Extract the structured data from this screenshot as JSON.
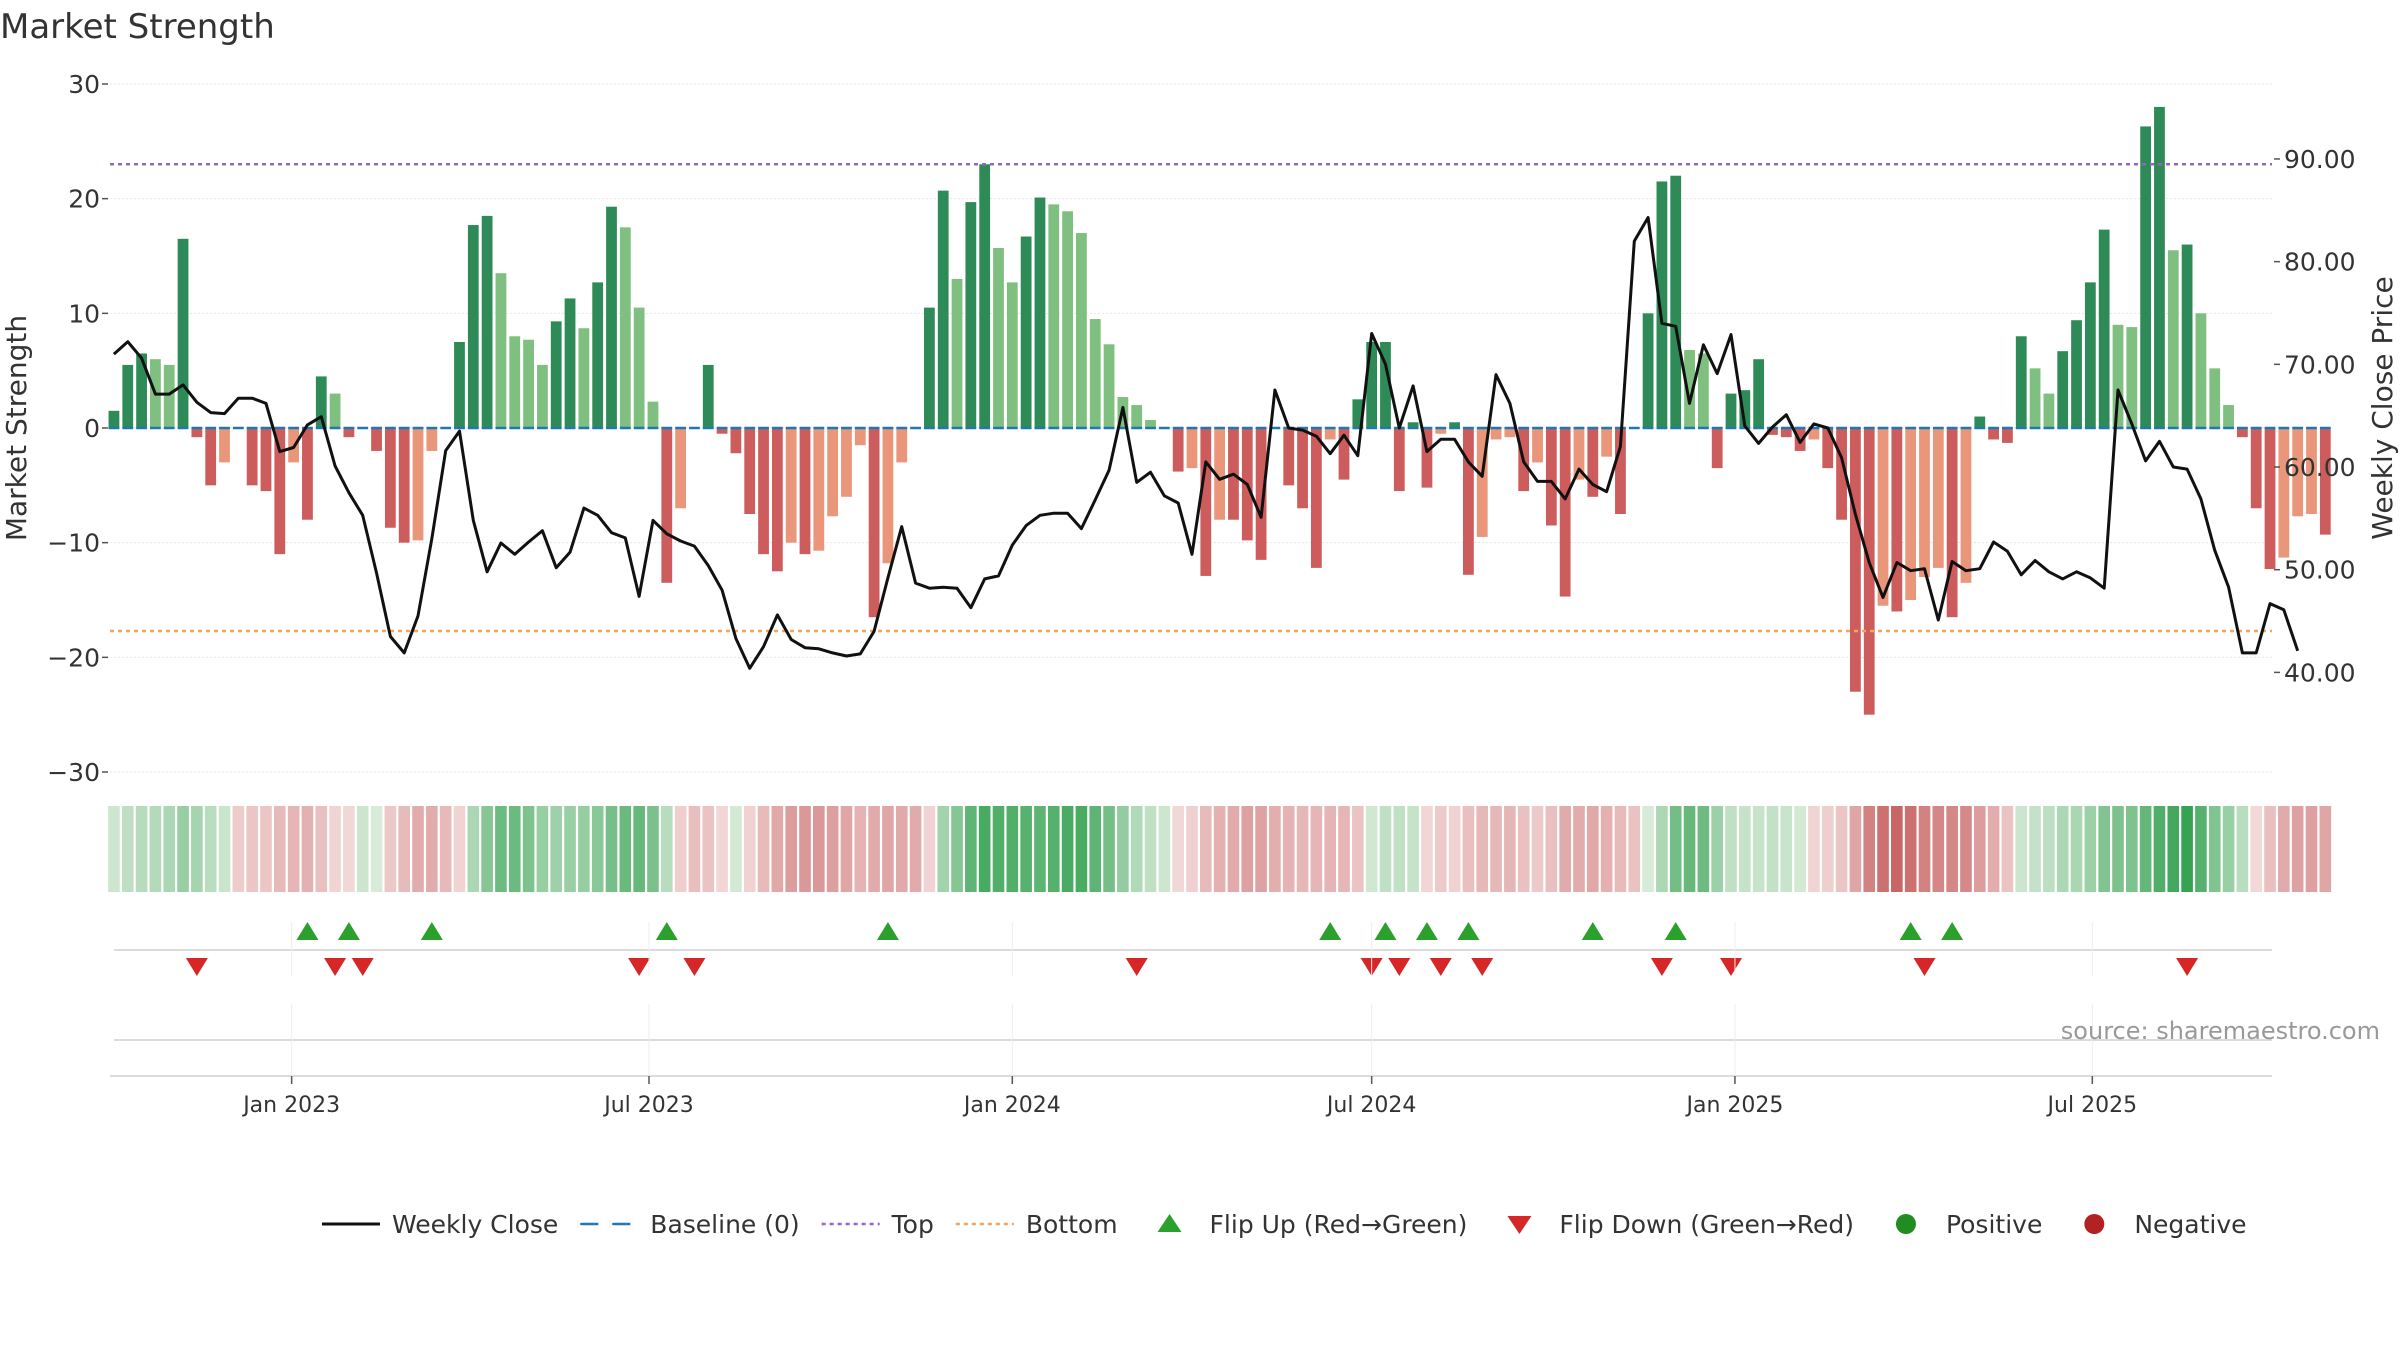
{
  "chart_data": {
    "type": "bar",
    "title": "Market Strength",
    "ylabel": "Market Strength",
    "y2label": "Weekly Close Price",
    "ylim": [
      -30,
      30
    ],
    "y2lim": [
      30.3,
      97.3
    ],
    "yticks": [
      {
        "v": 30,
        "t": "30"
      },
      {
        "v": 20,
        "t": "20"
      },
      {
        "v": 10,
        "t": "10"
      },
      {
        "v": 0,
        "t": "0"
      },
      {
        "v": -10,
        "t": "−10"
      },
      {
        "v": -20,
        "t": "−20"
      },
      {
        "v": -30,
        "t": "−30"
      }
    ],
    "y2ticks": [
      "90.00",
      "80.00",
      "70.00",
      "60.00",
      "50.00",
      "40.00"
    ],
    "top_line": 23,
    "bottom_line": -17.7,
    "x_start": "2022-10-01",
    "x_end": "2025-09-30",
    "week_start": "2022-10-03",
    "xticks": [
      {
        "date": "2023-01-01",
        "label": "Jan 2023"
      },
      {
        "date": "2023-07-01",
        "label": "Jul 2023"
      },
      {
        "date": "2024-01-01",
        "label": "Jan 2024"
      },
      {
        "date": "2024-07-01",
        "label": "Jul 2024"
      },
      {
        "date": "2025-01-01",
        "label": "Jan 2025"
      },
      {
        "date": "2025-07-01",
        "label": "Jul 2025"
      }
    ],
    "strength": [
      1.5,
      5.5,
      6.5,
      6,
      5.5,
      16.5,
      -0.8,
      -5,
      -3,
      0,
      -5,
      -5.5,
      -11,
      -3,
      -8,
      4.5,
      3,
      -0.8,
      0,
      -2,
      -8.7,
      -10,
      -9.8,
      -2,
      0,
      7.5,
      17.7,
      18.5,
      13.5,
      8,
      7.7,
      5.5,
      9.3,
      11.3,
      8.7,
      12.7,
      19.3,
      17.5,
      10.5,
      2.3,
      -13.5,
      -7,
      0,
      5.5,
      -0.5,
      -2.2,
      -7.5,
      -11,
      -12.5,
      -10,
      -11,
      -10.7,
      -7.7,
      -6,
      -1.5,
      -16.5,
      -11.8,
      -3,
      0,
      10.5,
      20.7,
      13,
      19.7,
      23,
      15.7,
      12.7,
      16.7,
      20.1,
      19.5,
      18.9,
      17,
      9.5,
      7.3,
      2.7,
      2,
      0.7,
      0,
      -3.8,
      -3.5,
      -12.9,
      -8,
      -8,
      -9.8,
      -11.5,
      0,
      -5,
      -7,
      -12.2,
      -1,
      -4.5,
      2.5,
      7.5,
      7.5,
      -5.5,
      0.5,
      -5.2,
      -0.5,
      0.5,
      -12.8,
      -9.5,
      -1,
      -0.8,
      -5.5,
      -3,
      -8.5,
      -14.7,
      -4.5,
      -6,
      -2.5,
      -7.5,
      0,
      10,
      21.5,
      22,
      6.8,
      6.5,
      -3.5,
      3,
      3.3,
      6,
      -0.6,
      -0.8,
      -2,
      -1,
      -3.5,
      -8,
      -23,
      -25,
      -15.5,
      -16,
      -15,
      -13,
      -12.2,
      -16.5,
      -13.5,
      1,
      -1,
      -1.3,
      8,
      5.2,
      3,
      6.7,
      9.4,
      12.7,
      17.3,
      9,
      8.8,
      26.3,
      28,
      15.5,
      16,
      10,
      5.2,
      2,
      -0.8,
      -7,
      -12.3,
      -11.3,
      -7.7,
      -7.5,
      -9.3
    ],
    "weekly_close": [
      71,
      72.2,
      70.6,
      67.1,
      67.1,
      68,
      66.3,
      65.3,
      65.2,
      66.7,
      66.7,
      66.2,
      61.5,
      61.9,
      64.1,
      64.9,
      60.1,
      57.5,
      55.3,
      49.7,
      43.5,
      41.9,
      45.5,
      53,
      61.6,
      63.5,
      54.8,
      49.8,
      52.6,
      51.5,
      52.7,
      53.8,
      50.2,
      51.7,
      56,
      55.3,
      53.6,
      53.1,
      47.4,
      54.8,
      53.5,
      52.8,
      52.3,
      50.4,
      48,
      43.3,
      40.4,
      42.5,
      45.6,
      43.2,
      42.4,
      42.3,
      41.9,
      41.6,
      41.8,
      44,
      49.2,
      54.2,
      48.7,
      48.2,
      48.3,
      48.2,
      46.3,
      49.1,
      49.4,
      52.4,
      54.3,
      55.3,
      55.5,
      55.5,
      54,
      56.8,
      59.7,
      65.8,
      58.5,
      59.5,
      57.2,
      56.5,
      51.5,
      60.5,
      58.8,
      59.3,
      58.3,
      55.1,
      67.5,
      63.8,
      63.6,
      63,
      61.3,
      63.1,
      61.1,
      73,
      70,
      63.8,
      67.9,
      61.5,
      62.7,
      62.7,
      60.5,
      59.1,
      69,
      66.2,
      60.5,
      58.6,
      58.6,
      56.9,
      59.8,
      58.3,
      57.6,
      62,
      82,
      84.3,
      74,
      73.7,
      66.2,
      71.9,
      69.1,
      72.9,
      64,
      62.3,
      63.9,
      65.1,
      62.4,
      64.2,
      63.8,
      60.9,
      55.4,
      50.7,
      47.3,
      50.7,
      49.9,
      50.1,
      45.1,
      50.8,
      49.9,
      50.1,
      52.7,
      51.8,
      49.5,
      50.9,
      49.8,
      49.1,
      49.8,
      49.2,
      48.2,
      67.5,
      64.2,
      60.6,
      62.5,
      60,
      59.8,
      56.9,
      51.9,
      48.3,
      41.9,
      41.9,
      46.7,
      46.1,
      42.1
    ],
    "flip_up_weeks": [
      14,
      17,
      23,
      40,
      56,
      88,
      92,
      95,
      98,
      107,
      113,
      130,
      133
    ],
    "flip_down_weeks": [
      6,
      16,
      18,
      38,
      42,
      74,
      91,
      93,
      96,
      99,
      112,
      117,
      131,
      150
    ],
    "bar_colors": {
      "strong_green": "#2e8b57",
      "light_green": "#7fbf7f",
      "strong_red": "#cd5c5c",
      "light_red": "#e9967a",
      "baseline": "#1f77b4",
      "top_line": "#9467bd",
      "bottom_line": "#f4a460",
      "flip_up": "#2ca02c",
      "flip_down": "#d62728",
      "positive_dot": "#228b22",
      "negative_dot": "#b22222",
      "price_line": "#111111"
    },
    "legend": [
      {
        "label": "Weekly Close",
        "kind": "line"
      },
      {
        "label": "Baseline (0)",
        "kind": "dash"
      },
      {
        "label": "Top",
        "kind": "dot-purple"
      },
      {
        "label": "Bottom",
        "kind": "dot-orange"
      },
      {
        "label": "Flip Up (Red→Green)",
        "kind": "tri-up"
      },
      {
        "label": "Flip Down (Green→Red)",
        "kind": "tri-down"
      },
      {
        "label": "Positive",
        "kind": "circle-pos"
      },
      {
        "label": "Negative",
        "kind": "circle-neg"
      }
    ],
    "watermark": "source: sharemaestro.com"
  }
}
